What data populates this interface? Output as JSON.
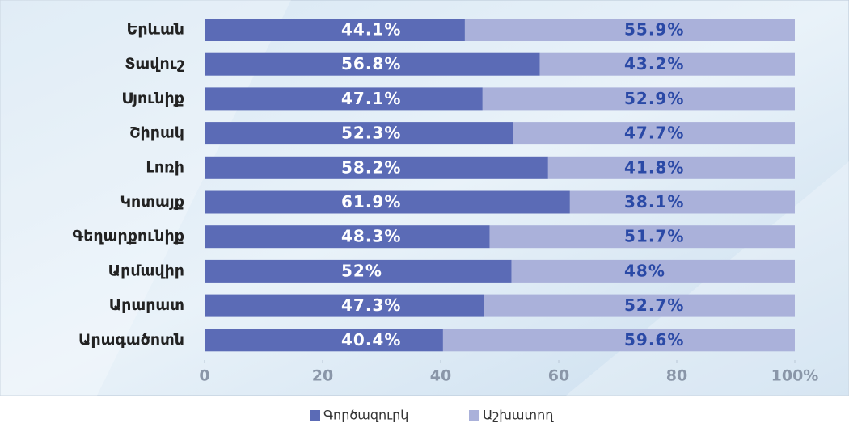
{
  "chart_data": {
    "type": "stacked-bar-horizontal",
    "categories": [
      "Երևան",
      "Տավուշ",
      "Սյունիք",
      "Շիրակ",
      "Լոռի",
      "Կոտայք",
      "Գեղարքունիք",
      "Արմավիր",
      "Արարատ",
      "Արագածոտն"
    ],
    "series": [
      {
        "name": "Գործազուրկ",
        "color": "#5b6bb6",
        "values": [
          44.1,
          56.8,
          47.1,
          52.3,
          58.2,
          61.9,
          48.3,
          52,
          47.3,
          40.4
        ],
        "value_labels": [
          "44.1%",
          "56.8%",
          "47.1%",
          "52.3%",
          "58.2%",
          "61.9%",
          "48.3%",
          "52%",
          "47.3%",
          "40.4%"
        ]
      },
      {
        "name": "Աշխատող",
        "color": "#aab1da",
        "values": [
          55.9,
          43.2,
          52.9,
          47.7,
          41.8,
          38.1,
          51.7,
          48,
          52.7,
          59.6
        ],
        "value_labels": [
          "55.9%",
          "43.2%",
          "52.9%",
          "47.7%",
          "41.8%",
          "38.1%",
          "51.7%",
          "48%",
          "52.7%",
          "59.6%"
        ]
      }
    ],
    "xlim": [
      0,
      100
    ],
    "xticks": [
      0,
      20,
      40,
      60,
      80,
      {
        "value": 100,
        "label": "100%"
      }
    ],
    "legend": "bottom"
  }
}
